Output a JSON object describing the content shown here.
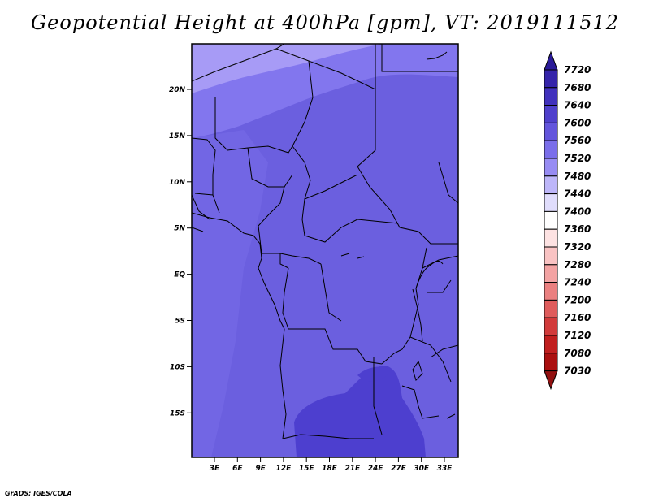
{
  "title": "Geopotential Height at 400hPa [gpm], VT: 2019111512",
  "credit": "GrADS: IGES/COLA",
  "map": {
    "lat_labels": [
      "20N",
      "15N",
      "10N",
      "5N",
      "EQ",
      "5S",
      "10S",
      "15S"
    ],
    "lon_labels": [
      "3E",
      "6E",
      "9E",
      "12E",
      "15E",
      "18E",
      "21E",
      "24E",
      "27E",
      "30E",
      "33E"
    ],
    "extent": {
      "lon": [
        0,
        35
      ],
      "lat": [
        -20,
        24.5
      ]
    },
    "fill_colors": {
      "7480-7520": "#a79bf6",
      "7520-7560": "#8276ee",
      "7560-7600": "#6b5fdf",
      "7600-7640": "#4d3fcf"
    }
  },
  "colorbar": {
    "labels": [
      "7720",
      "7680",
      "7640",
      "7600",
      "7560",
      "7520",
      "7480",
      "7440",
      "7400",
      "7360",
      "7320",
      "7280",
      "7240",
      "7200",
      "7160",
      "7120",
      "7080",
      "7030"
    ],
    "colors": [
      "#2a1a98",
      "#3524aa",
      "#4131bd",
      "#4f40cc",
      "#6355dc",
      "#7a6eea",
      "#978cf3",
      "#bdb6f9",
      "#e0ddfc",
      "#ffffff",
      "#fde2e2",
      "#f9c3c3",
      "#f3a3a3",
      "#ea8080",
      "#df5c5c",
      "#d23b3b",
      "#c11f1f",
      "#aa0f0f",
      "#921010"
    ]
  }
}
